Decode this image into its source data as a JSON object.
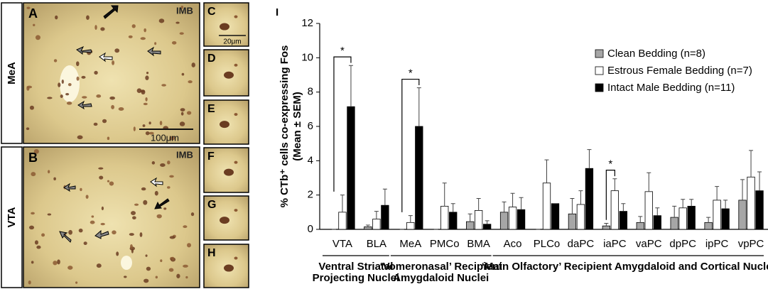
{
  "panels": [
    {
      "letter": "A",
      "region": "MeA",
      "stain": "IMB",
      "scale_bar": "100μm"
    },
    {
      "letter": "B",
      "region": "VTA",
      "stain": "IMB"
    }
  ],
  "insets": [
    {
      "letter": "C",
      "scale_bar": "20μm"
    },
    {
      "letter": "D"
    },
    {
      "letter": "E"
    },
    {
      "letter": "F"
    },
    {
      "letter": "G"
    },
    {
      "letter": "H"
    }
  ],
  "chart_data": {
    "type": "bar",
    "panel_letter": "I",
    "ylabel": [
      "% CTb⁺ cells co-expressing Fos",
      "(Mean ± SEM)"
    ],
    "categories": [
      "VTA",
      "BLA",
      "MeA",
      "PMCo",
      "BMA",
      "Aco",
      "PLCo",
      "daPC",
      "iaPC",
      "vaPC",
      "dpPC",
      "ipPC",
      "vpPC"
    ],
    "series": [
      {
        "name": "Clean Bedding (n=8)",
        "color": "#a6a6a6",
        "values": [
          0,
          0.15,
          0,
          0,
          0.45,
          1.0,
          0,
          0.9,
          0.2,
          0.4,
          0.7,
          0.4,
          1.7
        ],
        "errors": [
          0,
          0.1,
          0,
          0,
          0.45,
          0.6,
          0,
          0.9,
          0.15,
          0.35,
          0.65,
          0.3,
          1.2
        ]
      },
      {
        "name": "Estrous Female Bedding (n=7)",
        "color": "#ffffff",
        "values": [
          1.0,
          0.6,
          0.4,
          1.35,
          1.1,
          1.3,
          2.7,
          1.45,
          2.25,
          2.2,
          1.25,
          1.7,
          3.05
        ],
        "errors": [
          1.0,
          0.45,
          0.4,
          1.35,
          0.7,
          0.8,
          1.35,
          0.8,
          0.7,
          1.1,
          0.5,
          0.8,
          1.55
        ]
      },
      {
        "name": "Intact Male Bedding (n=11)",
        "color": "#000000",
        "values": [
          7.15,
          1.4,
          6.0,
          1.0,
          0.3,
          1.15,
          1.5,
          3.55,
          1.05,
          0.8,
          1.35,
          1.2,
          2.25
        ],
        "errors": [
          2.4,
          0.95,
          2.25,
          0.5,
          0.2,
          0.7,
          0,
          1.1,
          0.45,
          0.45,
          0.4,
          0.5,
          1.1
        ]
      }
    ],
    "ylim": [
      0,
      12
    ],
    "yticks": [
      0,
      2,
      4,
      6,
      8,
      10,
      12
    ],
    "legend": "upper right",
    "annotations": [
      "*",
      "*",
      "*"
    ],
    "groups": [
      {
        "label": [
          "Ventral Striatal",
          "Projecting Nuclei"
        ]
      },
      {
        "label": [
          "‘Vomeronasal’ Recipient",
          "Amygdaloid Nuclei"
        ]
      },
      {
        "label": [
          "‘Main Olfactory’ Recipient Amygdaloid and Cortical Nuclei"
        ]
      }
    ]
  }
}
